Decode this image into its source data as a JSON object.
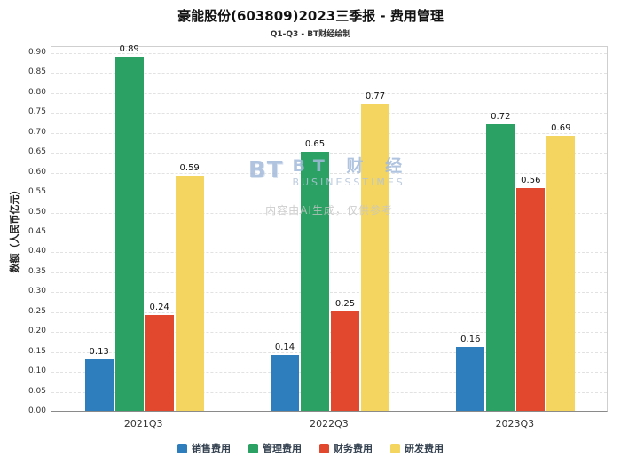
{
  "header": {
    "title": "豪能股份(603809)2023三季报 - 费用管理",
    "subtitle": "Q1-Q3 - BT财经绘制"
  },
  "chart_data": {
    "type": "bar",
    "categories": [
      "2021Q3",
      "2022Q3",
      "2023Q3"
    ],
    "series": [
      {
        "name": "销售费用",
        "color": "#2e7ebd",
        "values": [
          0.13,
          0.14,
          0.16
        ]
      },
      {
        "name": "管理费用",
        "color": "#2ba263",
        "values": [
          0.89,
          0.65,
          0.72
        ]
      },
      {
        "name": "财务费用",
        "color": "#e1482e",
        "values": [
          0.24,
          0.25,
          0.56
        ]
      },
      {
        "name": "研发费用",
        "color": "#f3d55f",
        "values": [
          0.59,
          0.77,
          0.69
        ]
      }
    ],
    "title": "豪能股份(603809)2023三季报 - 费用管理",
    "xlabel": "",
    "ylabel": "数额（人民币亿元）",
    "ylim": [
      0,
      0.9
    ],
    "ytick_step": 0.05,
    "grid": true,
    "legend_position": "bottom"
  },
  "watermark": {
    "logo_text": "BT",
    "brand_cn": "BT 财 经",
    "brand_en": "BUSINESSTIMES",
    "note": "内容由AI生成，仅供参考"
  }
}
